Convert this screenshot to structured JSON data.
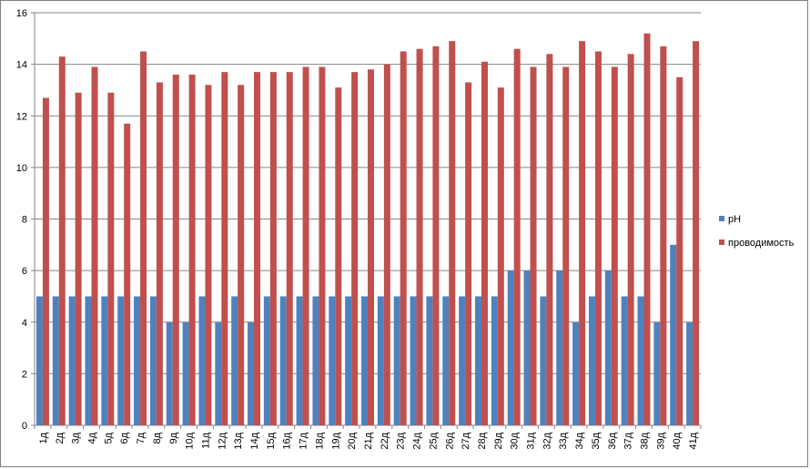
{
  "chart_data": {
    "type": "bar",
    "title": "",
    "xlabel": "",
    "ylabel": "",
    "ylim": [
      0,
      16
    ],
    "y_ticks": [
      0,
      2,
      4,
      6,
      8,
      10,
      12,
      14,
      16
    ],
    "grid": "horizontal major gridlines",
    "legend_position": "right",
    "categories": [
      "1д",
      "2д",
      "3д",
      "4д",
      "5д",
      "6д",
      "7д",
      "8д",
      "9д",
      "10д",
      "11д",
      "12д",
      "13д",
      "14д",
      "15д",
      "16д",
      "17д",
      "18д",
      "19д",
      "20д",
      "21д",
      "22д",
      "23д",
      "24д",
      "25д",
      "26д",
      "27д",
      "28д",
      "29д",
      "30д",
      "31д",
      "32д",
      "33д",
      "34д",
      "35д",
      "36д",
      "37д",
      "38д",
      "39д",
      "40д",
      "41д"
    ],
    "series": [
      {
        "name": "pH",
        "color": "#4f81bd",
        "values": [
          5,
          5,
          5,
          5,
          5,
          5,
          5,
          5,
          4,
          4,
          5,
          4,
          5,
          4,
          5,
          5,
          5,
          5,
          5,
          5,
          5,
          5,
          5,
          5,
          5,
          5,
          5,
          5,
          5,
          6,
          6,
          5,
          6,
          4,
          5,
          6,
          5,
          5,
          4,
          7,
          4
        ]
      },
      {
        "name": "проводимость",
        "color": "#c0504d",
        "values": [
          12.7,
          14.3,
          12.9,
          13.9,
          12.9,
          11.7,
          14.5,
          13.3,
          13.6,
          13.6,
          13.2,
          13.7,
          13.2,
          13.7,
          13.7,
          13.7,
          13.9,
          13.9,
          13.1,
          13.7,
          13.8,
          14.0,
          14.5,
          14.6,
          14.7,
          14.9,
          13.3,
          14.1,
          13.1,
          14.6,
          13.9,
          14.4,
          13.9,
          14.9,
          14.5,
          13.9,
          14.4,
          15.2,
          14.7,
          13.5,
          14.9
        ]
      }
    ]
  }
}
